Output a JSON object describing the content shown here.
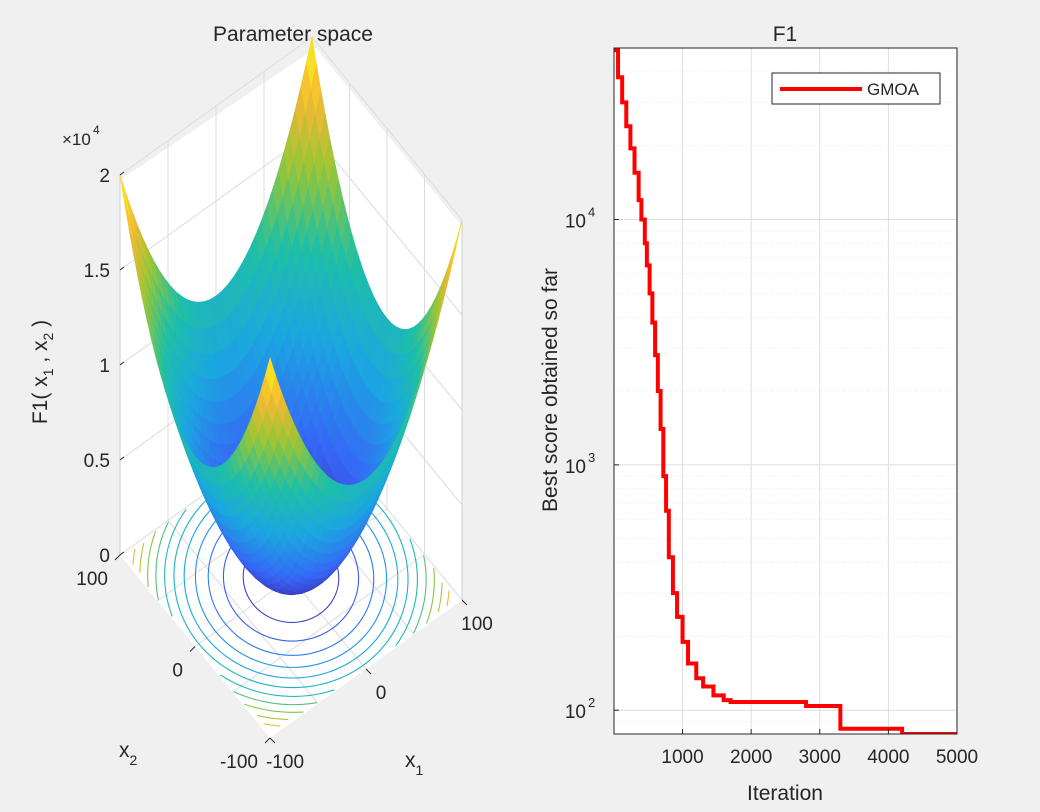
{
  "window": {
    "background": "#f0f0f0"
  },
  "chart_data": [
    {
      "type": "surface",
      "title": "Parameter space",
      "function": "sum of squares (x1^2 + x2^2)",
      "xlabel_base": "x",
      "xlabel_sub": "1",
      "ylabel_base": "x",
      "ylabel_sub": "2",
      "zlabel": {
        "base": "F1( x",
        "sub1": "1",
        "mid": " , x",
        "sub2": "2",
        "end": " )"
      },
      "x_range": [
        -100,
        100
      ],
      "y_range": [
        -100,
        100
      ],
      "zlim": [
        0,
        20000
      ],
      "z_exponent": {
        "prefix": "×10",
        "power": "4"
      },
      "z_ticks": [
        "0",
        "0.5",
        "1",
        "1.5",
        "2"
      ],
      "x_ticks": [
        "-100",
        "0",
        "100"
      ],
      "y_ticks": [
        "-100",
        "0",
        "100"
      ],
      "colormap": "parula",
      "contour_levels": 12
    },
    {
      "type": "line",
      "scale_y": "log",
      "title": "F1",
      "xlabel": "Iteration",
      "ylabel": "Best score obtained so far",
      "xlim": [
        1,
        5000
      ],
      "ylim": [
        80,
        50000
      ],
      "x_ticks": [
        "1000",
        "2000",
        "3000",
        "4000",
        "5000"
      ],
      "y_ticks": [
        {
          "base": "10",
          "exp": "2",
          "value": 100
        },
        {
          "base": "10",
          "exp": "3",
          "value": 1000
        },
        {
          "base": "10",
          "exp": "4",
          "value": 10000
        }
      ],
      "grid": true,
      "legend_position": "top-right",
      "series": [
        {
          "name": "GMOA",
          "color": "#ff0000",
          "x": [
            1,
            60,
            120,
            180,
            240,
            300,
            360,
            400,
            450,
            480,
            520,
            560,
            600,
            640,
            680,
            720,
            760,
            800,
            860,
            920,
            1000,
            1080,
            1200,
            1300,
            1450,
            1600,
            1700,
            2000,
            2800,
            3300,
            4200,
            5000
          ],
          "y": [
            49000,
            38000,
            30000,
            24000,
            19500,
            15500,
            12000,
            10000,
            8000,
            6500,
            5000,
            3800,
            2800,
            2000,
            1400,
            900,
            650,
            420,
            300,
            240,
            190,
            155,
            135,
            125,
            115,
            110,
            108,
            108,
            104,
            84,
            80,
            80
          ]
        }
      ]
    }
  ]
}
